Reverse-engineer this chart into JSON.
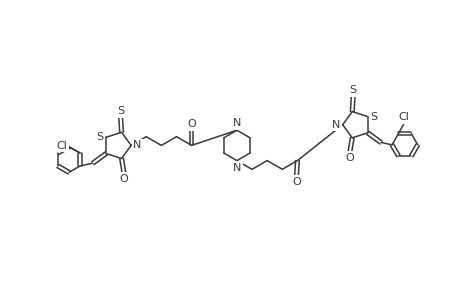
{
  "bg_color": "#ffffff",
  "line_color": "#3a3a3a",
  "line_width": 1.1,
  "figsize": [
    4.6,
    3.0
  ],
  "dpi": 100,
  "xlim": [
    0,
    10
  ],
  "ylim": [
    0,
    6.5
  ]
}
